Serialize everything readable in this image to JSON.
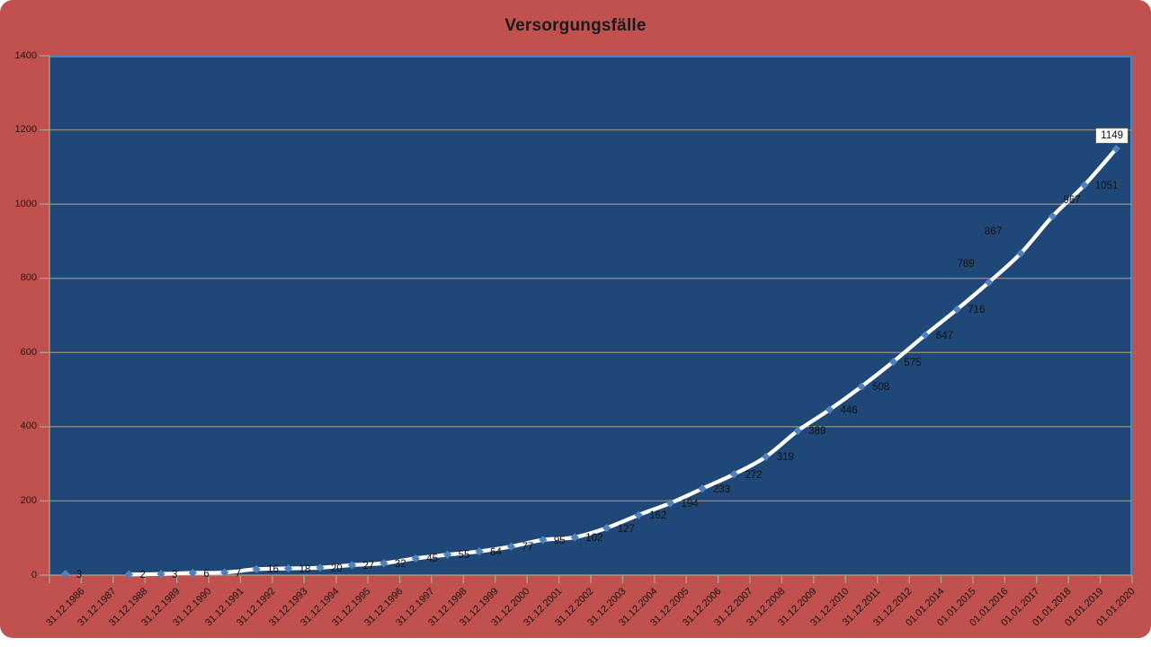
{
  "page": {
    "background": "#ffffff"
  },
  "colors": {
    "chart_bg": "#C0514E",
    "plot_bg": "#1F4878",
    "plot_border": "#4E81BD",
    "gridline": "#8F8B72",
    "axis": "#A6A396",
    "series_line": "#FFFFFF",
    "marker": "#4F81BD",
    "data_label": "#111111",
    "title": "#1A1A1A",
    "boxed_label_bg": "#FFFFFF",
    "boxed_label_border": "#595959"
  },
  "chart_data": {
    "type": "line",
    "title": "Versorgungsfälle",
    "smooth": true,
    "marker_shape": "diamond",
    "legend": "none",
    "grid": "horizontal",
    "xlabel": "",
    "ylabel": "",
    "ylim": [
      0,
      1400
    ],
    "y_ticks": [
      "0",
      "200",
      "400",
      "600",
      "800",
      "1000",
      "1200",
      "1400"
    ],
    "categories": [
      "31.12.1986",
      "31.12.1987",
      "31.12.1988",
      "31.12.1989",
      "31.12.1990",
      "31.12.1991",
      "31.12.1992",
      "31.12.1993",
      "31.12.1994",
      "31.12.1995",
      "31.12.1996",
      "31.12.1997",
      "31.12.1998",
      "31.12.1999",
      "31.12.2000",
      "31.12.2001",
      "31.12.2002",
      "31.12.2003",
      "31.12.2004",
      "31.12.2005",
      "31.12.2006",
      "31.12.2007",
      "31.12.2008",
      "31.12.2009",
      "31.12.2010",
      "31.12.2011",
      "31.12.2012",
      "01.01.2014",
      "01.01.2015",
      "01.01.2016",
      "01.01.2017",
      "01.01.2018",
      "01.01.2019",
      "01.01.2020"
    ],
    "values": [
      3,
      null,
      2,
      3,
      6,
      7,
      16,
      18,
      20,
      27,
      32,
      45,
      55,
      64,
      77,
      95,
      102,
      127,
      162,
      194,
      233,
      272,
      319,
      389,
      446,
      508,
      575,
      647,
      716,
      789,
      867,
      967,
      1051,
      1149
    ],
    "data_labels_shown": true,
    "label_overrides": {
      "29": {
        "dx": -35,
        "dy": -20
      },
      "30": {
        "dx": -40,
        "dy": -24
      },
      "31": {
        "dx": 12,
        "dy": -18
      },
      "33": {
        "dx": -23,
        "dy": -13,
        "boxed": true
      }
    }
  }
}
